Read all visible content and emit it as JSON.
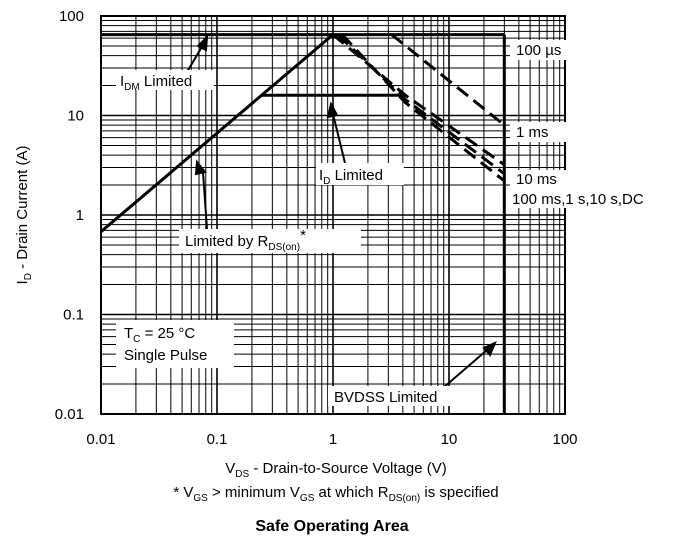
{
  "chart_data": {
    "type": "line",
    "title": "Safe Operating Area",
    "xlabel": {
      "main": "V",
      "sub": "DS",
      "rest": " - Drain-to-Source Voltage (V)"
    },
    "ylabel": {
      "main": "I",
      "sub": "D",
      "rest": " - Drain Current (A)"
    },
    "footnote": {
      "a": "* V",
      "a_sub": "GS",
      "b": " > minimum V",
      "b_sub": "GS",
      "c": " at which R",
      "c_sub": "DS(on)",
      "d": " is specified"
    },
    "x_scale": "log",
    "y_scale": "log",
    "xlim": [
      0.01,
      100
    ],
    "ylim": [
      0.01,
      100
    ],
    "x_ticks": [
      0.01,
      0.1,
      1,
      10,
      100
    ],
    "x_tick_labels": [
      "0.01",
      "0.1",
      "1",
      "10",
      "100"
    ],
    "y_ticks": [
      0.01,
      0.1,
      1,
      10,
      100
    ],
    "y_tick_labels": [
      "0.01",
      "0.1",
      "1",
      "10",
      "100"
    ],
    "grid": true,
    "series": [
      {
        "name": "Limited by R",
        "style": "solid",
        "x": [
          0.01,
          1
        ],
        "y": [
          0.68,
          65
        ]
      },
      {
        "name": "I",
        "style": "solid",
        "x": [
          0.01,
          30
        ],
        "y": [
          65,
          65
        ]
      },
      {
        "name": "I",
        "style": "solid",
        "x": [
          0.24,
          4.2
        ],
        "y": [
          16,
          16
        ]
      },
      {
        "name": "BVDSS Limited",
        "style": "solid",
        "x": [
          30,
          30
        ],
        "y": [
          0.01,
          65
        ]
      },
      {
        "name": "100 µs",
        "style": "dashed",
        "x": [
          3.2,
          30
        ],
        "y": [
          65,
          8
        ]
      },
      {
        "name": "1 ms",
        "style": "dashed",
        "x": [
          1,
          4.2,
          30
        ],
        "y": [
          65,
          16,
          3.2
        ]
      },
      {
        "name": "10 ms",
        "style": "dashed",
        "x": [
          1.1,
          4.2,
          30
        ],
        "y": [
          65,
          14.5,
          2.6
        ]
      },
      {
        "name": "100 ms,1 s,10 s,DC",
        "style": "dashed",
        "x": [
          1.2,
          4.2,
          30
        ],
        "y": [
          65,
          13.5,
          2.2
        ]
      }
    ],
    "annotations": {
      "idm_limited": {
        "main": "I",
        "sub": "DM",
        "rest": " Limited"
      },
      "id_limited": {
        "main": "I",
        "sub": "D",
        "rest": " Limited"
      },
      "rds_limited": {
        "main": "Limited by R",
        "sub": "DS(on)",
        "rest": "*"
      },
      "tc": {
        "main": "T",
        "sub": "C",
        "rest": " = 25 °C"
      },
      "single_pulse": "Single Pulse",
      "bvdss": "BVDSS Limited",
      "l100us": "100 µs",
      "l1ms": "1 ms",
      "l10ms": "10 ms",
      "ldc": "100 ms,1 s,10 s,DC"
    }
  }
}
